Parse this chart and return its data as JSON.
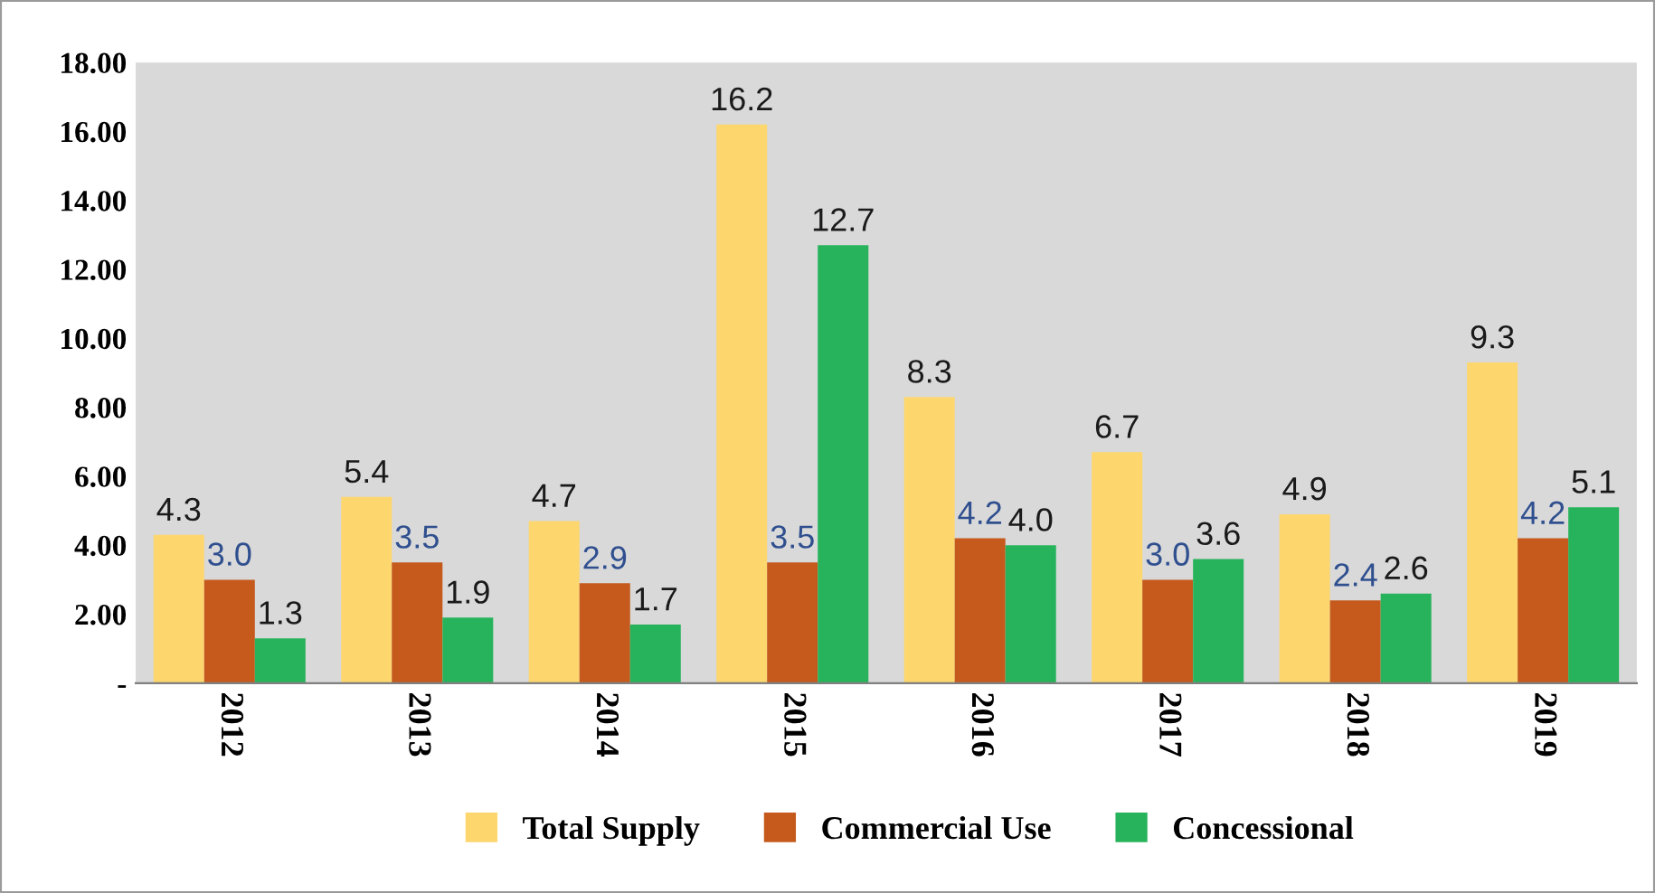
{
  "chart_data": {
    "type": "bar",
    "categories": [
      "2012",
      "2013",
      "2014",
      "2015",
      "2016",
      "2017",
      "2018",
      "2019"
    ],
    "series": [
      {
        "name": "Total Supply",
        "color": "#fdd66e",
        "values": [
          4.3,
          5.4,
          4.7,
          16.2,
          8.3,
          6.7,
          4.9,
          9.3
        ],
        "value_labels": [
          "4.3",
          "5.4",
          "4.7",
          "16.2",
          "8.3",
          "6.7",
          "4.9",
          "9.3"
        ]
      },
      {
        "name": "Commercial Use",
        "color": "#c55a1c",
        "values": [
          3.0,
          3.5,
          2.9,
          3.5,
          4.2,
          3.0,
          2.4,
          4.2
        ],
        "value_labels": [
          "3.0",
          "3.5",
          "2.9",
          "3.5",
          "4.2",
          "3.0",
          "2.4",
          "4.2"
        ]
      },
      {
        "name": "Concessional",
        "color": "#27b35b",
        "values": [
          1.3,
          1.9,
          1.7,
          12.7,
          4.0,
          3.6,
          2.6,
          5.1
        ],
        "value_labels": [
          "1.3",
          "1.9",
          "1.7",
          "12.7",
          "4.0",
          "3.6",
          "2.6",
          "5.1"
        ]
      }
    ],
    "ylim": [
      0,
      18
    ],
    "yticks": [
      {
        "value": 0,
        "label": "-"
      },
      {
        "value": 2,
        "label": "2.00"
      },
      {
        "value": 4,
        "label": "4.00"
      },
      {
        "value": 6,
        "label": "6.00"
      },
      {
        "value": 8,
        "label": "8.00"
      },
      {
        "value": 10,
        "label": "10.00"
      },
      {
        "value": 12,
        "label": "12.00"
      },
      {
        "value": 14,
        "label": "14.00"
      },
      {
        "value": 16,
        "label": "16.00"
      },
      {
        "value": 18,
        "label": "18.00"
      }
    ],
    "grid": false,
    "legend": "bottom"
  }
}
